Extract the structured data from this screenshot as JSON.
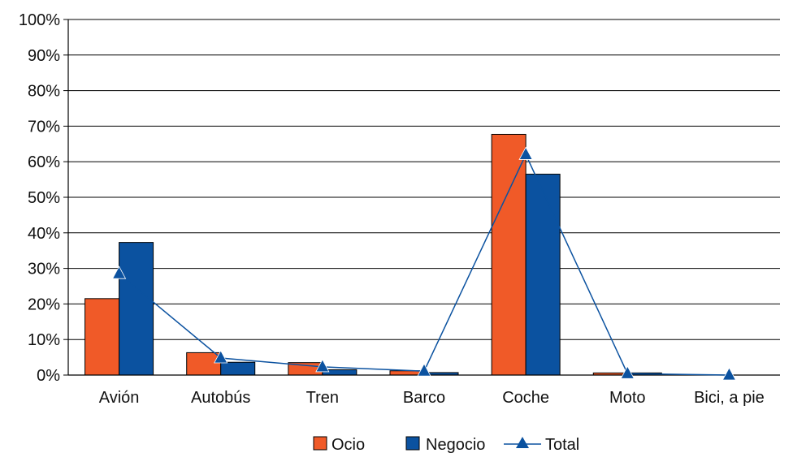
{
  "chart_data": {
    "type": "bar",
    "categories": [
      "Avión",
      "Autobús",
      "Tren",
      "Barco",
      "Coche",
      "Moto",
      "Bici, a pie"
    ],
    "series": [
      {
        "name": "Ocio",
        "type": "bar",
        "color": "#f05a28",
        "values": [
          21.5,
          6.3,
          3.5,
          1.2,
          67.7,
          0.6,
          0.0
        ]
      },
      {
        "name": "Negocio",
        "type": "bar",
        "color": "#0b52a0",
        "values": [
          37.3,
          3.6,
          1.5,
          0.7,
          56.5,
          0.6,
          0.0
        ]
      },
      {
        "name": "Total",
        "type": "line",
        "marker": "triangle",
        "color": "#0b52a0",
        "values": [
          28.5,
          4.8,
          2.3,
          1.1,
          62.0,
          0.4,
          0.0
        ]
      }
    ],
    "yticks": [
      "0%",
      "10%",
      "20%",
      "30%",
      "40%",
      "50%",
      "60%",
      "70%",
      "80%",
      "90%",
      "100%"
    ],
    "ylim": [
      0,
      100
    ],
    "grid": true,
    "legend_position": "bottom-center"
  }
}
